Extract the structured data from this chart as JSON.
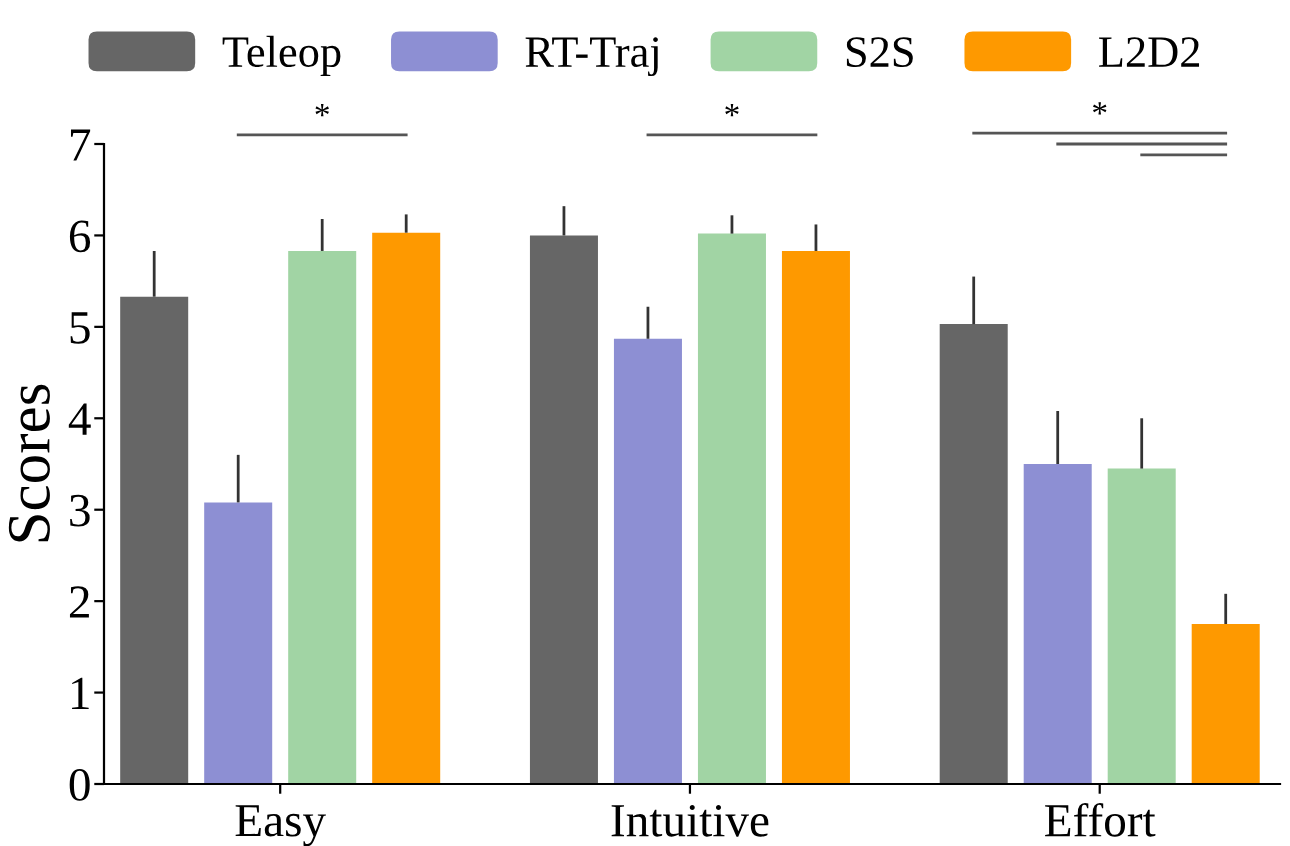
{
  "chart_data": {
    "type": "bar",
    "ylabel": "Scores",
    "categories": [
      "Easy",
      "Intuitive",
      "Effort"
    ],
    "series": [
      {
        "name": "Teleop",
        "color": "#666666",
        "values": [
          5.33,
          6.0,
          5.03
        ],
        "errors": [
          [
            5.33,
            5.83
          ],
          [
            6.0,
            6.32
          ],
          [
            5.03,
            5.55
          ]
        ]
      },
      {
        "name": "RT-Traj",
        "color": "#8d8fd3",
        "values": [
          3.08,
          4.87,
          3.5
        ],
        "errors": [
          [
            3.08,
            3.6
          ],
          [
            4.87,
            5.22
          ],
          [
            3.5,
            4.08
          ]
        ]
      },
      {
        "name": "S2S",
        "color": "#a1d4a4",
        "values": [
          5.83,
          6.02,
          3.45
        ],
        "errors": [
          [
            5.83,
            6.18
          ],
          [
            6.02,
            6.22
          ],
          [
            3.45,
            4.0
          ]
        ]
      },
      {
        "name": "L2D2",
        "color": "#fe9900",
        "values": [
          6.03,
          5.83,
          1.75
        ],
        "errors": [
          [
            6.03,
            6.23
          ],
          [
            5.83,
            6.12
          ],
          [
            1.75,
            2.08
          ]
        ]
      }
    ],
    "ylim": [
      0,
      7
    ],
    "yticks": [
      0,
      1,
      2,
      3,
      4,
      5,
      6,
      7
    ],
    "grid": false,
    "legend": "top",
    "annotations": [
      "*",
      "*",
      "*"
    ]
  }
}
